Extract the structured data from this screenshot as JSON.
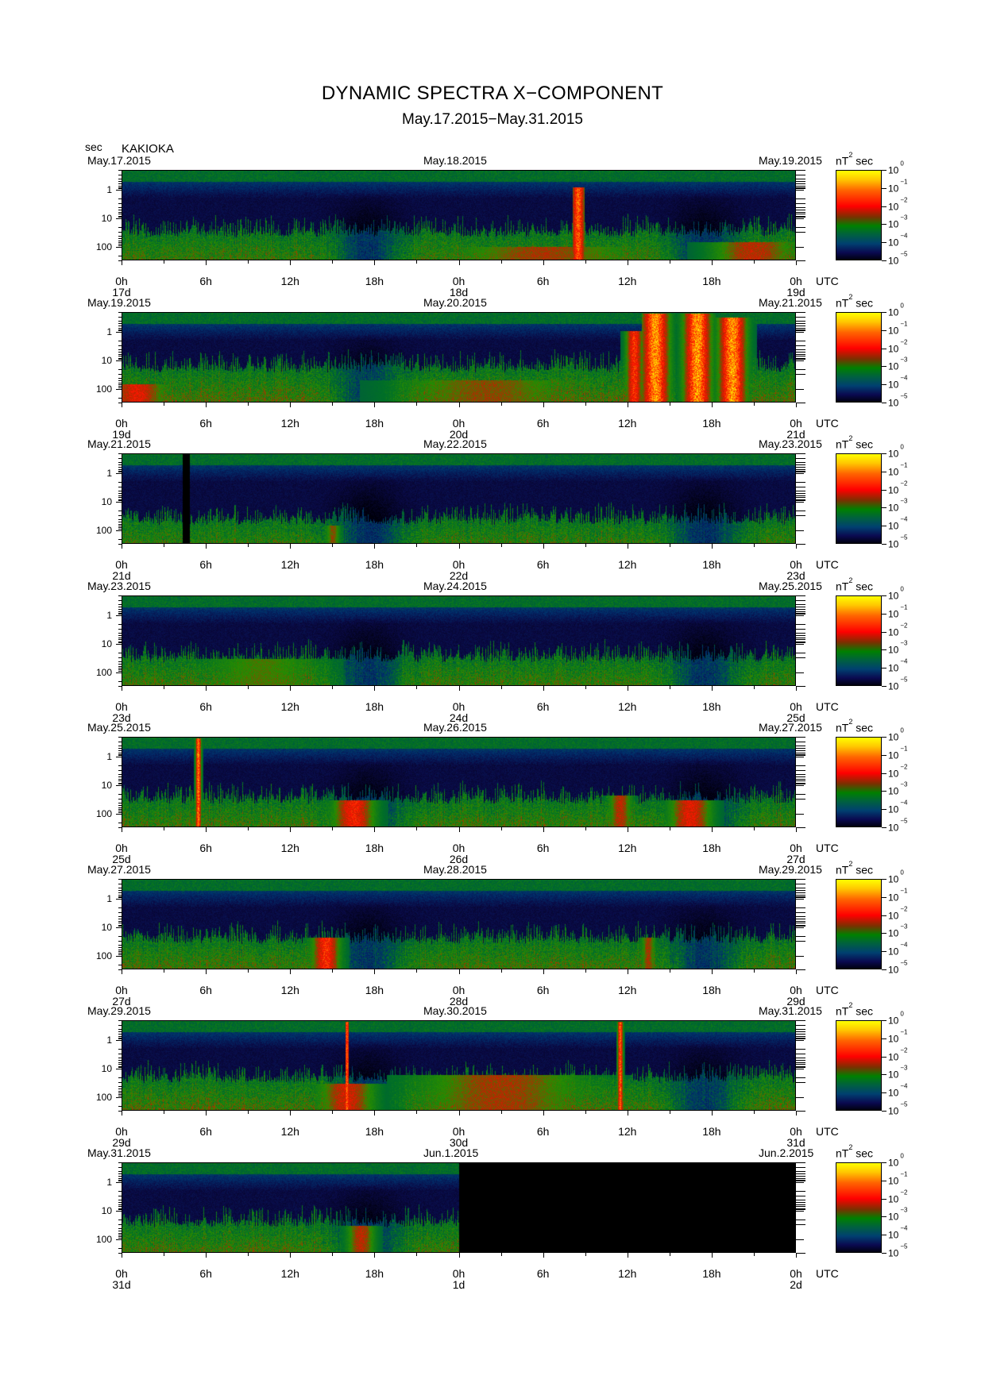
{
  "header": {
    "title": "DYNAMIC SPECTRA X−COMPONENT",
    "subtitle": "May.17.2015−May.31.2015",
    "yunit": "sec",
    "station": "KAKIOKA"
  },
  "colorbar": {
    "unit_base": "nT",
    "unit_exp": "2",
    "unit_suffix": "sec",
    "tick_base": "10",
    "tick_exponents": [
      "0",
      "−1",
      "−2",
      "−3",
      "−4",
      "−5"
    ],
    "colors": [
      "#ffff00",
      "#ff8000",
      "#ff0000",
      "#008000",
      "#004070",
      "#000010"
    ]
  },
  "axes": {
    "y_tick_labels": [
      "1",
      "10",
      "100"
    ],
    "x_tick_labels": [
      "0h",
      "6h",
      "12h",
      "18h",
      "0h",
      "6h",
      "12h",
      "18h",
      "0h"
    ],
    "utc_label": "UTC"
  },
  "chart_data": {
    "type": "heatmap",
    "title": "DYNAMIC SPECTRA X−COMPONENT",
    "ylabel": "sec",
    "y_scale": "log",
    "ylim": [
      0.2,
      300
    ],
    "color_scale": "log",
    "color_range": [
      1e-05,
      1
    ],
    "color_unit": "nT^2 sec",
    "x_hours_per_panel": 48,
    "panels": [
      {
        "dates": [
          "May.17.2015",
          "May.18.2015",
          "May.19.2015"
        ],
        "days": [
          "17d",
          "18d",
          "19d"
        ],
        "events": [
          {
            "hour": 32.5,
            "intensity": 0.9,
            "reach": 0.82,
            "width": 0.5
          },
          {
            "hour": 45,
            "intensity": 0.6,
            "reach": 0.2,
            "width": 3
          },
          {
            "hour": 30,
            "intensity": 0.55,
            "reach": 0.15,
            "width": 6
          }
        ],
        "base": 0.35,
        "nodata": []
      },
      {
        "dates": [
          "May.19.2015",
          "May.20.2015",
          "May.21.2015"
        ],
        "days": [
          "19d",
          "20d",
          "21d"
        ],
        "events": [
          {
            "hour": 38,
            "intensity": 1.0,
            "reach": 1.0,
            "width": 1.0
          },
          {
            "hour": 41,
            "intensity": 1.0,
            "reach": 1.0,
            "width": 1.0
          },
          {
            "hour": 43.5,
            "intensity": 1.0,
            "reach": 0.95,
            "width": 1.0
          },
          {
            "hour": 36.5,
            "intensity": 0.8,
            "reach": 0.8,
            "width": 0.6
          },
          {
            "hour": 1,
            "intensity": 0.7,
            "reach": 0.2,
            "width": 2
          },
          {
            "hour": 26,
            "intensity": 0.5,
            "reach": 0.25,
            "width": 6
          }
        ],
        "base": 0.5,
        "nodata": []
      },
      {
        "dates": [
          "May.21.2015",
          "May.22.2015",
          "May.23.2015"
        ],
        "days": [
          "21d",
          "22d",
          "23d"
        ],
        "events": [
          {
            "hour": 15,
            "intensity": 0.5,
            "reach": 0.2,
            "width": 0.5
          }
        ],
        "base": 0.25,
        "nodata": [
          [
            4.3,
            4.8
          ]
        ]
      },
      {
        "dates": [
          "May.23.2015",
          "May.24.2015",
          "May.25.2015"
        ],
        "days": [
          "23d",
          "24d",
          "25d"
        ],
        "events": [
          {
            "hour": 10,
            "intensity": 0.4,
            "reach": 0.3,
            "width": 4
          }
        ],
        "base": 0.35,
        "nodata": []
      },
      {
        "dates": [
          "May.25.2015",
          "May.26.2015",
          "May.27.2015"
        ],
        "days": [
          "25d",
          "26d",
          "27d"
        ],
        "events": [
          {
            "hour": 5.4,
            "intensity": 0.95,
            "reach": 1.0,
            "width": 0.2
          },
          {
            "hour": 16.5,
            "intensity": 0.75,
            "reach": 0.3,
            "width": 1.5
          },
          {
            "hour": 40.5,
            "intensity": 0.7,
            "reach": 0.3,
            "width": 1.5
          },
          {
            "hour": 35.5,
            "intensity": 0.6,
            "reach": 0.35,
            "width": 0.8
          }
        ],
        "base": 0.35,
        "nodata": []
      },
      {
        "dates": [
          "May.27.2015",
          "May.28.2015",
          "May.29.2015"
        ],
        "days": [
          "27d",
          "28d",
          "29d"
        ],
        "events": [
          {
            "hour": 14.5,
            "intensity": 0.8,
            "reach": 0.35,
            "width": 1.0
          },
          {
            "hour": 37.5,
            "intensity": 0.55,
            "reach": 0.35,
            "width": 0.5
          }
        ],
        "base": 0.4,
        "nodata": []
      },
      {
        "dates": [
          "May.29.2015",
          "May.30.2015",
          "May.31.2015"
        ],
        "days": [
          "29d",
          "30d",
          "31d"
        ],
        "events": [
          {
            "hour": 16,
            "intensity": 0.9,
            "reach": 1.0,
            "width": 0.2
          },
          {
            "hour": 35.5,
            "intensity": 0.9,
            "reach": 1.0,
            "width": 0.2
          },
          {
            "hour": 16,
            "intensity": 0.65,
            "reach": 0.3,
            "width": 2
          },
          {
            "hour": 27,
            "intensity": 0.55,
            "reach": 0.4,
            "width": 6
          }
        ],
        "base": 0.45,
        "nodata": []
      },
      {
        "dates": [
          "May.31.2015",
          "Jun.1.2015",
          "Jun.2.2015"
        ],
        "days": [
          "31d",
          "1d",
          "2d"
        ],
        "events": [
          {
            "hour": 17,
            "intensity": 0.6,
            "reach": 0.3,
            "width": 1
          }
        ],
        "base": 0.4,
        "nodata": [
          [
            24,
            48
          ]
        ]
      }
    ]
  }
}
